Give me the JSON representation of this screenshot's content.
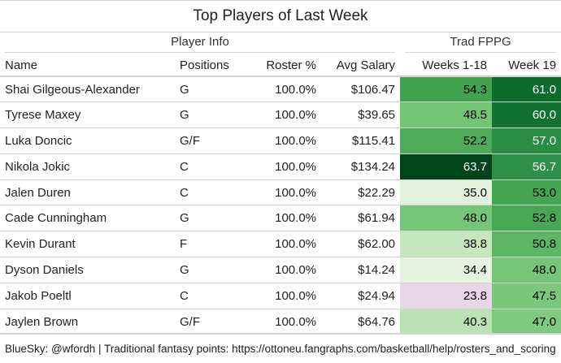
{
  "title": "Top Players of Last Week",
  "spanners": {
    "player_info": "Player Info",
    "trad_fppg": "Trad FPPG"
  },
  "columns": [
    "Name",
    "Positions",
    "Roster %",
    "Avg Salary",
    "Weeks 1-18",
    "Week 19"
  ],
  "rows": [
    {
      "name": "Shai Gilgeous-Alexander",
      "pos": "G",
      "roster": "100.0%",
      "salary": "$106.47",
      "w118": "54.3",
      "w19": "61.0",
      "w118_color": "#41a24f",
      "w19_color": "#0d6b2d",
      "w118_dark": false,
      "w19_dark": true
    },
    {
      "name": "Tyrese Maxey",
      "pos": "G",
      "roster": "100.0%",
      "salary": "$39.65",
      "w118": "48.5",
      "w19": "60.0",
      "w118_color": "#74c476",
      "w19_color": "#127234",
      "w118_dark": false,
      "w19_dark": true
    },
    {
      "name": "Luka Doncic",
      "pos": "G/F",
      "roster": "100.0%",
      "salary": "$115.41",
      "w118": "52.2",
      "w19": "57.0",
      "w118_color": "#4daa58",
      "w19_color": "#2a8c45",
      "w118_dark": false,
      "w19_dark": true
    },
    {
      "name": "Nikola Jokic",
      "pos": "C",
      "roster": "100.0%",
      "salary": "$134.24",
      "w118": "63.7",
      "w19": "56.7",
      "w118_color": "#00441b",
      "w19_color": "#2f9049",
      "w118_dark": true,
      "w19_dark": true
    },
    {
      "name": "Jalen Duren",
      "pos": "C",
      "roster": "100.0%",
      "salary": "$22.29",
      "w118": "35.0",
      "w19": "53.0",
      "w118_color": "#e2f2de",
      "w19_color": "#45a552",
      "w118_dark": false,
      "w19_dark": false
    },
    {
      "name": "Cade Cunningham",
      "pos": "G",
      "roster": "100.0%",
      "salary": "$61.94",
      "w118": "48.0",
      "w19": "52.8",
      "w118_color": "#77c578",
      "w19_color": "#48a754",
      "w118_dark": false,
      "w19_dark": false
    },
    {
      "name": "Kevin Durant",
      "pos": "F",
      "roster": "100.0%",
      "salary": "$62.00",
      "w118": "38.8",
      "w19": "50.8",
      "w118_color": "#c6e6bf",
      "w19_color": "#5cb663",
      "w118_dark": false,
      "w19_dark": false
    },
    {
      "name": "Dyson Daniels",
      "pos": "G",
      "roster": "100.0%",
      "salary": "$14.24",
      "w118": "34.4",
      "w19": "48.0",
      "w118_color": "#e5f4e1",
      "w19_color": "#77c578",
      "w118_dark": false,
      "w19_dark": false
    },
    {
      "name": "Jakob Poeltl",
      "pos": "C",
      "roster": "100.0%",
      "salary": "$24.94",
      "w118": "23.8",
      "w19": "47.5",
      "w118_color": "#e8d5e7",
      "w19_color": "#7bc77c",
      "w118_dark": false,
      "w19_dark": false
    },
    {
      "name": "Jaylen Brown",
      "pos": "G/F",
      "roster": "100.0%",
      "salary": "$64.76",
      "w118": "40.3",
      "w19": "47.0",
      "w118_color": "#bbe2b4",
      "w19_color": "#80c980",
      "w118_dark": false,
      "w19_dark": false
    }
  ],
  "footer": "BlueSky: @wfordh | Traditional fantasy points: https://ottoneu.fangraphs.com/basketball/help/rosters_and_scoring"
}
